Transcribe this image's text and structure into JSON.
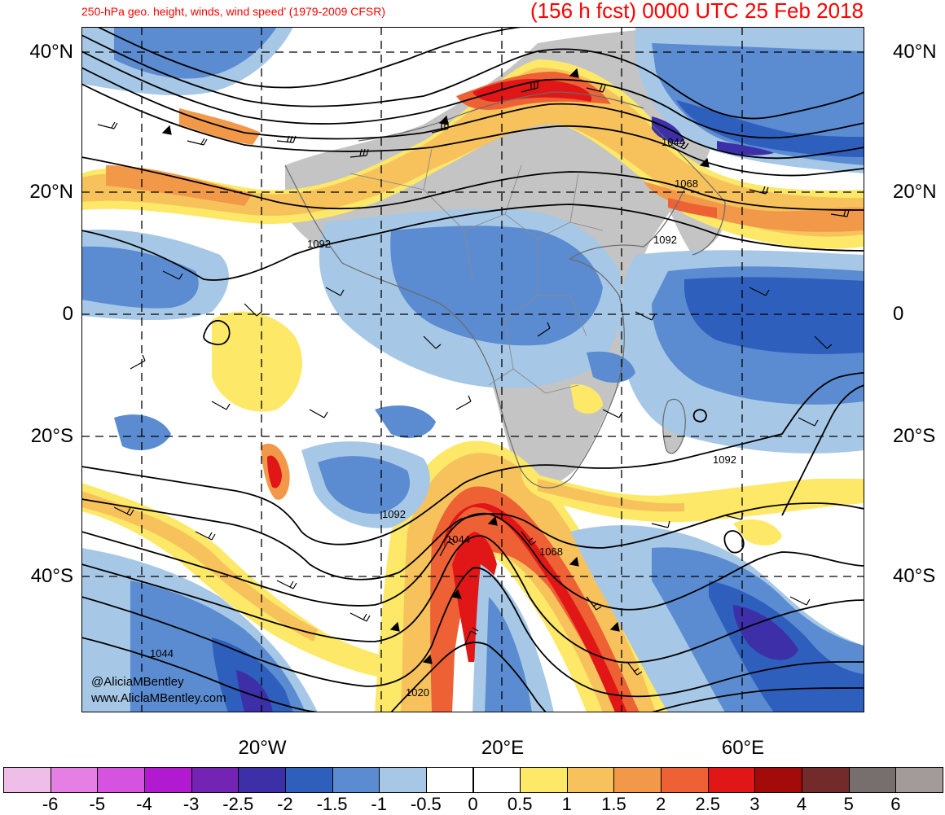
{
  "title": {
    "left": "250-hPa geo. height, winds, wind speed’ (1979-2009 CFSR)",
    "right": "(156 h fcst) 0000 UTC 25 Feb 2018"
  },
  "axes": {
    "lat_left": [
      "40°N",
      "20°N",
      "0",
      "20°S",
      "40°S"
    ],
    "lat_right": [
      "40°N",
      "20°N",
      "0",
      "20°S",
      "40°S"
    ],
    "lon_bottom": [
      "20°W",
      "20°E",
      "60°E"
    ]
  },
  "contour_labels": [
    "1044",
    "1068",
    "1092",
    "1092",
    "1092",
    "1092",
    "1044",
    "1068",
    "1044",
    "1020"
  ],
  "credits": {
    "handle": "@AliciaMBentley",
    "site": "www.AliciaMBentley.com"
  },
  "colorbar": {
    "colors": [
      "#eebde8",
      "#e57fe3",
      "#d653e0",
      "#b11ad0",
      "#7424b5",
      "#3c2fa8",
      "#2f5fbd",
      "#5b8cd1",
      "#a6c8e6",
      "#ffffff",
      "#ffffff",
      "#fde868",
      "#f7c25c",
      "#f29849",
      "#ed6135",
      "#e11717",
      "#a30b0b",
      "#722a2a",
      "#766f6e",
      "#a39b9a"
    ],
    "labels": [
      "-6",
      "-5",
      "-4",
      "-3",
      "-2.5",
      "-2",
      "-1.5",
      "-1",
      "-0.5",
      "0",
      "0.5",
      "1",
      "1.5",
      "2",
      "2.5",
      "3",
      "4",
      "5",
      "6"
    ]
  },
  "anomaly_colors": {
    "strong_pos": "#e11717",
    "mod_pos": "#ed6135",
    "weak_pos": "#f29849",
    "slight_pos": "#f7c25c",
    "faint_pos": "#fde868",
    "faint_neg": "#a6c8e6",
    "weak_neg": "#5b8cd1",
    "mod_neg": "#2f5fbd",
    "strong_neg": "#3c2fa8",
    "land": "#c4c4c4"
  }
}
